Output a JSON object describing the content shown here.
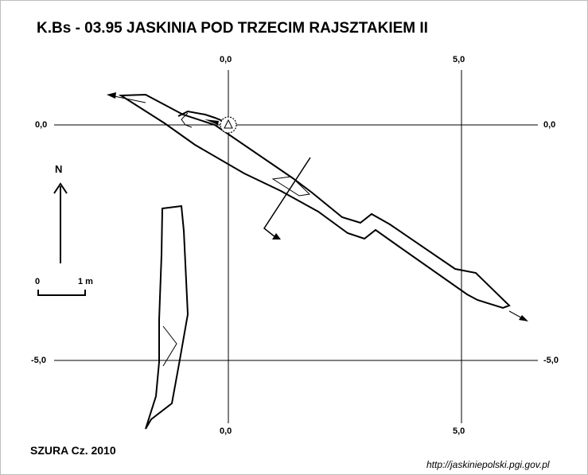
{
  "map": {
    "title": "K.Bs - 03.95  JASKINIA POD TRZECIM RAJSZTAKIEM II",
    "grid": {
      "x_top_left": "0,0",
      "x_top_right": "5,0",
      "x_bottom_left": "0,0",
      "x_bottom_right": "5,0",
      "y_upper_left": "0,0",
      "y_upper_right": "0,0",
      "y_lower_left": "-5,0",
      "y_lower_right": "-5,0"
    },
    "north_label": "N",
    "scale": {
      "start": "0",
      "end": "1 m"
    },
    "author": "SZURA Cz. 2010",
    "source": "http://jaskiniepolski.pgi.gov.pl",
    "colors": {
      "line": "#000000",
      "background": "#ffffff",
      "frame": "#bdbdbd"
    },
    "icons": [
      "north-arrow-icon",
      "entrance-triangle-icon",
      "section-arrow-icon"
    ]
  }
}
